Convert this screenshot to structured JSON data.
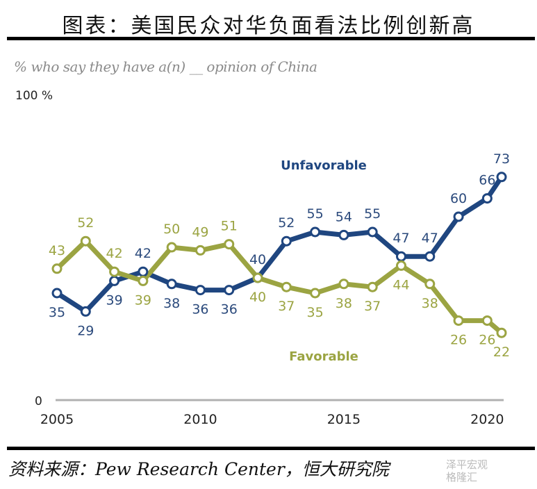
{
  "title": "图表：美国民众对华负面看法比例创新高",
  "source": "资料来源：Pew Research Center，恒大研究院",
  "watermark": {
    "line1": "泽平宏观",
    "line2": "格隆汇"
  },
  "chart_data": {
    "type": "line",
    "title": "",
    "subtitle": "% who say they have a(n) __ opinion of China",
    "ytick_top": "100 %",
    "ytick_bottom": "0",
    "ylim": [
      0,
      100
    ],
    "xlim": [
      2005,
      2020.5
    ],
    "xticks": [
      "2005",
      "2010",
      "2015",
      "2020"
    ],
    "x": [
      2005,
      2006,
      2007,
      2008,
      2009,
      2010,
      2011,
      2012,
      2013,
      2014,
      2015,
      2016,
      2017,
      2018,
      2019,
      2020,
      2020.5
    ],
    "grid": false,
    "series": [
      {
        "name": "Unfavorable",
        "color": "#1f4680",
        "values": [
          35,
          29,
          39,
          42,
          38,
          36,
          36,
          40,
          52,
          55,
          54,
          55,
          47,
          47,
          60,
          66,
          73
        ]
      },
      {
        "name": "Favorable",
        "color": "#9ba442",
        "values": [
          43,
          52,
          42,
          39,
          50,
          49,
          51,
          40,
          37,
          35,
          38,
          37,
          44,
          38,
          26,
          26,
          22
        ]
      }
    ]
  }
}
